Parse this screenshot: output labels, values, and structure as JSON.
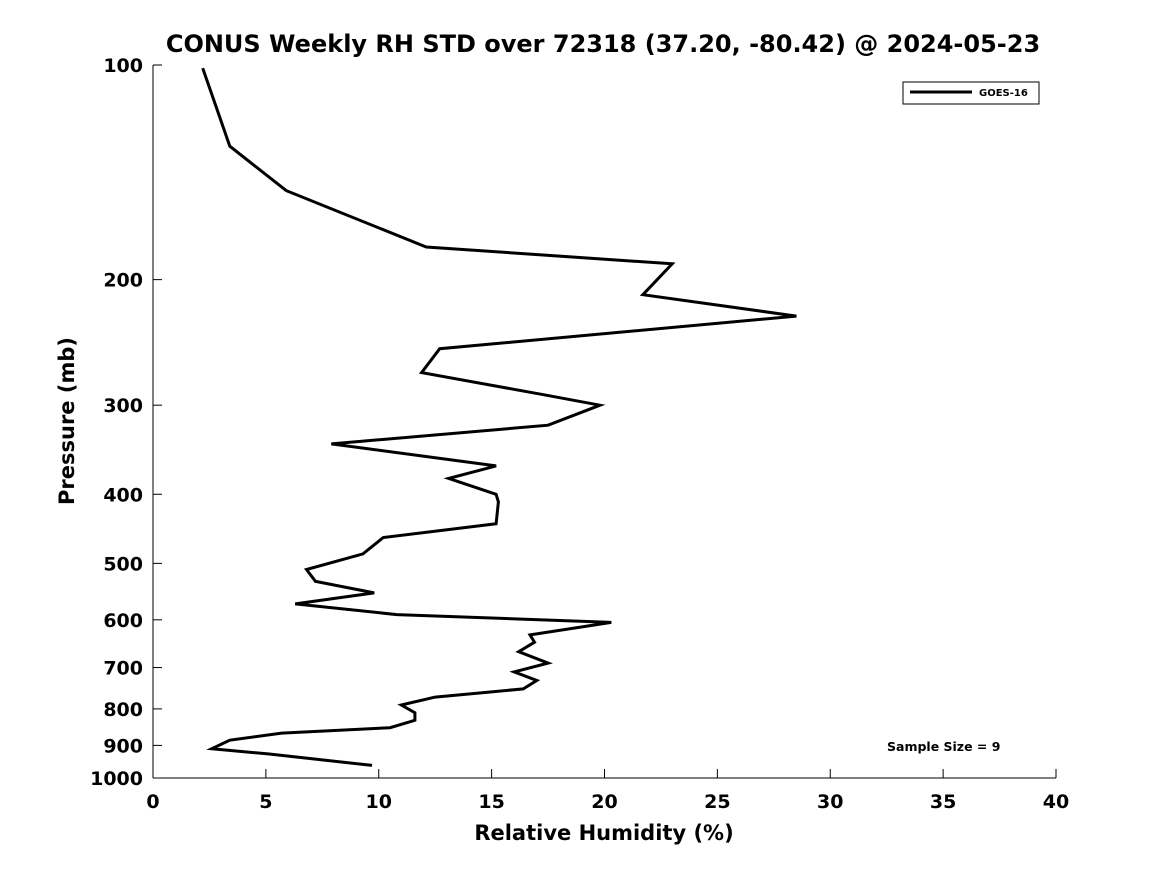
{
  "chart_data": {
    "type": "line",
    "title": "CONUS Weekly RH STD over 72318 (37.20, -80.42) @ 2024-05-23",
    "xlabel": "Relative Humidity (%)",
    "ylabel": "Pressure (mb)",
    "xlim": [
      0,
      40
    ],
    "ylim": [
      100,
      1000
    ],
    "y_scale": "log",
    "y_inverted": true,
    "x_ticks": [
      "0",
      "5",
      "10",
      "15",
      "20",
      "25",
      "30",
      "35",
      "40"
    ],
    "y_ticks": [
      "100",
      "200",
      "300",
      "400",
      "500",
      "600",
      "700",
      "800",
      "900",
      "1000"
    ],
    "grid": false,
    "legend_position": "top-right",
    "annotation": "Sample Size = 9",
    "series": [
      {
        "name": "GOES-16",
        "color": "#000000",
        "x": [
          2.2,
          3.4,
          5.9,
          12.1,
          23.0,
          21.7,
          28.5,
          12.7,
          11.9,
          17.3,
          19.8,
          17.5,
          7.9,
          15.2,
          13.1,
          15.2,
          15.3,
          15.2,
          10.2,
          9.3,
          6.8,
          7.2,
          9.8,
          6.3,
          10.8,
          20.3,
          16.7,
          16.9,
          16.2,
          17.5,
          16.0,
          17.0,
          16.4,
          12.5,
          11.0,
          11.6,
          11.6,
          10.5,
          5.7,
          3.4,
          2.6,
          5.1,
          9.7
        ],
        "y": [
          101,
          130,
          150,
          180,
          190,
          210,
          225,
          250,
          270,
          290,
          300,
          320,
          340,
          365,
          380,
          400,
          410,
          440,
          460,
          485,
          510,
          530,
          550,
          570,
          590,
          605,
          630,
          645,
          665,
          690,
          710,
          730,
          750,
          770,
          790,
          810,
          830,
          850,
          865,
          885,
          910,
          925,
          960
        ]
      }
    ]
  }
}
